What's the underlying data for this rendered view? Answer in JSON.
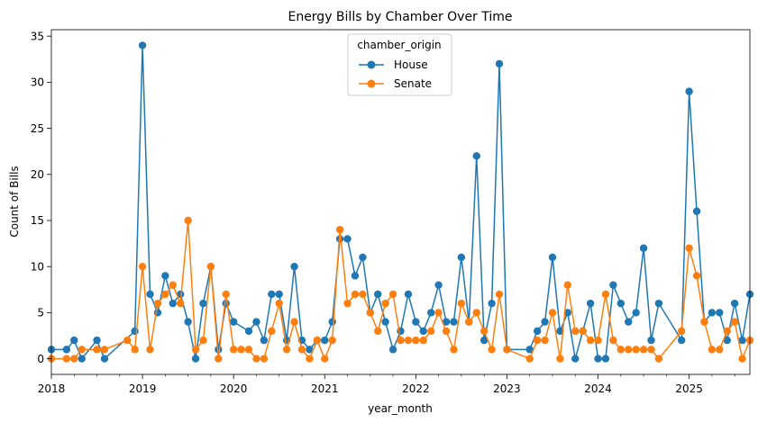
{
  "chart_data": {
    "type": "line",
    "title": "Energy Bills by Chamber Over Time",
    "xlabel": "year_month",
    "ylabel": "Count of Bills",
    "x_ticks": [
      "2018",
      "2019",
      "2020",
      "2021",
      "2022",
      "2023",
      "2024",
      "2025"
    ],
    "y_ticks": [
      0,
      5,
      10,
      15,
      20,
      25,
      30,
      35
    ],
    "xlim": [
      "2018-01",
      "2025-09"
    ],
    "ylim": [
      -1.7,
      35.7
    ],
    "grid": false,
    "legend": {
      "title": "chamber_origin",
      "placement": "upper center"
    },
    "series": [
      {
        "name": "House",
        "color": "#1f77b4",
        "points": [
          [
            "2018-01",
            1
          ],
          [
            "2018-03",
            1
          ],
          [
            "2018-04",
            2
          ],
          [
            "2018-05",
            0
          ],
          [
            "2018-07",
            2
          ],
          [
            "2018-08",
            0
          ],
          [
            "2018-12",
            3
          ],
          [
            "2019-01",
            34
          ],
          [
            "2019-02",
            7
          ],
          [
            "2019-03",
            5
          ],
          [
            "2019-04",
            9
          ],
          [
            "2019-05",
            6
          ],
          [
            "2019-06",
            7
          ],
          [
            "2019-07",
            4
          ],
          [
            "2019-08",
            0
          ],
          [
            "2019-09",
            6
          ],
          [
            "2019-10",
            10
          ],
          [
            "2019-11",
            1
          ],
          [
            "2019-12",
            6
          ],
          [
            "2020-01",
            4
          ],
          [
            "2020-03",
            3
          ],
          [
            "2020-04",
            4
          ],
          [
            "2020-05",
            2
          ],
          [
            "2020-06",
            7
          ],
          [
            "2020-07",
            7
          ],
          [
            "2020-08",
            2
          ],
          [
            "2020-09",
            10
          ],
          [
            "2020-10",
            2
          ],
          [
            "2020-11",
            1
          ],
          [
            "2020-12",
            2
          ],
          [
            "2021-01",
            2
          ],
          [
            "2021-02",
            4
          ],
          [
            "2021-03",
            13
          ],
          [
            "2021-04",
            13
          ],
          [
            "2021-05",
            9
          ],
          [
            "2021-06",
            11
          ],
          [
            "2021-07",
            5
          ],
          [
            "2021-08",
            7
          ],
          [
            "2021-09",
            4
          ],
          [
            "2021-10",
            1
          ],
          [
            "2021-11",
            3
          ],
          [
            "2021-12",
            7
          ],
          [
            "2022-01",
            4
          ],
          [
            "2022-02",
            3
          ],
          [
            "2022-03",
            5
          ],
          [
            "2022-04",
            8
          ],
          [
            "2022-05",
            4
          ],
          [
            "2022-06",
            4
          ],
          [
            "2022-07",
            11
          ],
          [
            "2022-08",
            4
          ],
          [
            "2022-09",
            22
          ],
          [
            "2022-10",
            2
          ],
          [
            "2022-11",
            6
          ],
          [
            "2022-12",
            32
          ],
          [
            "2023-01",
            1
          ],
          [
            "2023-04",
            1
          ],
          [
            "2023-05",
            3
          ],
          [
            "2023-06",
            4
          ],
          [
            "2023-07",
            11
          ],
          [
            "2023-08",
            3
          ],
          [
            "2023-09",
            5
          ],
          [
            "2023-10",
            0
          ],
          [
            "2023-11",
            3
          ],
          [
            "2023-12",
            6
          ],
          [
            "2024-01",
            0
          ],
          [
            "2024-02",
            0
          ],
          [
            "2024-03",
            8
          ],
          [
            "2024-04",
            6
          ],
          [
            "2024-05",
            4
          ],
          [
            "2024-06",
            5
          ],
          [
            "2024-07",
            12
          ],
          [
            "2024-08",
            2
          ],
          [
            "2024-09",
            6
          ],
          [
            "2024-12",
            2
          ],
          [
            "2025-01",
            29
          ],
          [
            "2025-02",
            16
          ],
          [
            "2025-03",
            4
          ],
          [
            "2025-04",
            5
          ],
          [
            "2025-05",
            5
          ],
          [
            "2025-06",
            2
          ],
          [
            "2025-07",
            6
          ],
          [
            "2025-08",
            2
          ],
          [
            "2025-09",
            7
          ]
        ]
      },
      {
        "name": "Senate",
        "color": "#ff7f0e",
        "points": [
          [
            "2018-01",
            0
          ],
          [
            "2018-03",
            0
          ],
          [
            "2018-04",
            0
          ],
          [
            "2018-05",
            1
          ],
          [
            "2018-07",
            1
          ],
          [
            "2018-08",
            1
          ],
          [
            "2018-11",
            2
          ],
          [
            "2018-12",
            1
          ],
          [
            "2019-01",
            10
          ],
          [
            "2019-02",
            1
          ],
          [
            "2019-03",
            6
          ],
          [
            "2019-04",
            7
          ],
          [
            "2019-05",
            8
          ],
          [
            "2019-06",
            6
          ],
          [
            "2019-07",
            15
          ],
          [
            "2019-08",
            1
          ],
          [
            "2019-09",
            2
          ],
          [
            "2019-10",
            10
          ],
          [
            "2019-11",
            0
          ],
          [
            "2019-12",
            7
          ],
          [
            "2020-01",
            1
          ],
          [
            "2020-02",
            1
          ],
          [
            "2020-03",
            1
          ],
          [
            "2020-04",
            0
          ],
          [
            "2020-05",
            0
          ],
          [
            "2020-06",
            3
          ],
          [
            "2020-07",
            6
          ],
          [
            "2020-08",
            1
          ],
          [
            "2020-09",
            4
          ],
          [
            "2020-10",
            1
          ],
          [
            "2020-11",
            0
          ],
          [
            "2020-12",
            2
          ],
          [
            "2021-01",
            0
          ],
          [
            "2021-02",
            2
          ],
          [
            "2021-03",
            14
          ],
          [
            "2021-04",
            6
          ],
          [
            "2021-05",
            7
          ],
          [
            "2021-06",
            7
          ],
          [
            "2021-07",
            5
          ],
          [
            "2021-08",
            3
          ],
          [
            "2021-09",
            6
          ],
          [
            "2021-10",
            7
          ],
          [
            "2021-11",
            2
          ],
          [
            "2021-12",
            2
          ],
          [
            "2022-01",
            2
          ],
          [
            "2022-02",
            2
          ],
          [
            "2022-03",
            3
          ],
          [
            "2022-04",
            5
          ],
          [
            "2022-05",
            3
          ],
          [
            "2022-06",
            1
          ],
          [
            "2022-07",
            6
          ],
          [
            "2022-08",
            4
          ],
          [
            "2022-09",
            5
          ],
          [
            "2022-10",
            3
          ],
          [
            "2022-11",
            1
          ],
          [
            "2022-12",
            7
          ],
          [
            "2023-01",
            1
          ],
          [
            "2023-04",
            0
          ],
          [
            "2023-05",
            2
          ],
          [
            "2023-06",
            2
          ],
          [
            "2023-07",
            5
          ],
          [
            "2023-08",
            0
          ],
          [
            "2023-09",
            8
          ],
          [
            "2023-10",
            3
          ],
          [
            "2023-11",
            3
          ],
          [
            "2023-12",
            2
          ],
          [
            "2024-01",
            2
          ],
          [
            "2024-02",
            7
          ],
          [
            "2024-03",
            2
          ],
          [
            "2024-04",
            1
          ],
          [
            "2024-05",
            1
          ],
          [
            "2024-06",
            1
          ],
          [
            "2024-07",
            1
          ],
          [
            "2024-08",
            1
          ],
          [
            "2024-09",
            0
          ],
          [
            "2024-12",
            3
          ],
          [
            "2025-01",
            12
          ],
          [
            "2025-02",
            9
          ],
          [
            "2025-03",
            4
          ],
          [
            "2025-04",
            1
          ],
          [
            "2025-05",
            1
          ],
          [
            "2025-06",
            3
          ],
          [
            "2025-07",
            4
          ],
          [
            "2025-08",
            0
          ],
          [
            "2025-09",
            2
          ]
        ]
      }
    ]
  }
}
